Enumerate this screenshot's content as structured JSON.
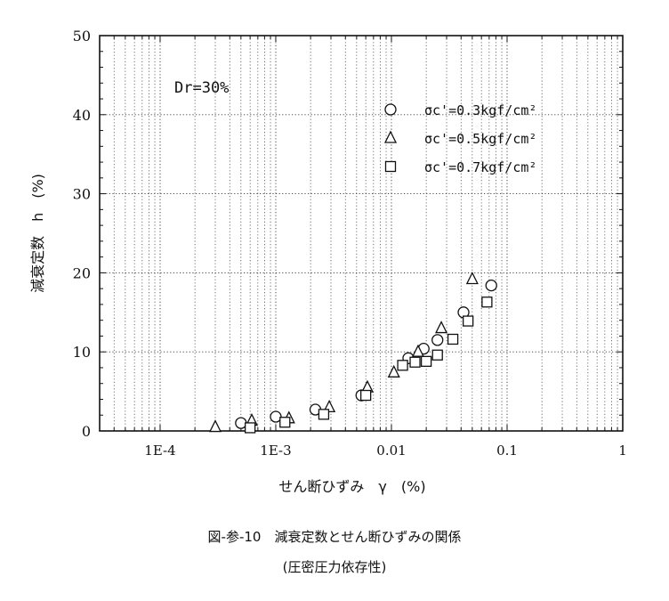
{
  "chart_data": {
    "type": "scatter",
    "xscale": "log",
    "xlim": [
      3e-05,
      1
    ],
    "ylim": [
      0,
      50
    ],
    "ylabel": "減衰定数　h　(%)",
    "xlabel": "せん断ひずみ　γ　(%)",
    "x_ticks": [
      {
        "value": 0.0001,
        "label": "1E-4"
      },
      {
        "value": 0.001,
        "label": "1E-3"
      },
      {
        "value": 0.01,
        "label": "0.01"
      },
      {
        "value": 0.1,
        "label": "0.1"
      },
      {
        "value": 1,
        "label": "1"
      }
    ],
    "y_ticks": [
      {
        "value": 0,
        "label": "0"
      },
      {
        "value": 10,
        "label": "10"
      },
      {
        "value": 20,
        "label": "20"
      },
      {
        "value": 30,
        "label": "30"
      },
      {
        "value": 40,
        "label": "40"
      },
      {
        "value": 50,
        "label": "50"
      }
    ],
    "grid": true,
    "legend_position": "top-right",
    "annotation": "Dr=30%",
    "series": [
      {
        "name": "σc'=0.3kgf/cm²",
        "marker": "circle",
        "points": [
          [
            0.0005,
            1.0
          ],
          [
            0.001,
            1.8
          ],
          [
            0.0022,
            2.7
          ],
          [
            0.0055,
            4.5
          ],
          [
            0.014,
            9.2
          ],
          [
            0.019,
            10.4
          ],
          [
            0.025,
            11.5
          ],
          [
            0.042,
            15.0
          ],
          [
            0.073,
            18.4
          ]
        ]
      },
      {
        "name": "σc'=0.5kgf/cm²",
        "marker": "triangle",
        "points": [
          [
            0.0003,
            0.5
          ],
          [
            0.00062,
            1.3
          ],
          [
            0.0013,
            1.6
          ],
          [
            0.0029,
            3.0
          ],
          [
            0.0062,
            5.5
          ],
          [
            0.0105,
            7.4
          ],
          [
            0.017,
            10.0
          ],
          [
            0.027,
            13.0
          ],
          [
            0.05,
            19.2
          ]
        ]
      },
      {
        "name": "σc'=0.7kgf/cm²",
        "marker": "square",
        "points": [
          [
            0.0006,
            0.4
          ],
          [
            0.0012,
            1.1
          ],
          [
            0.0026,
            2.1
          ],
          [
            0.006,
            4.5
          ],
          [
            0.0125,
            8.3
          ],
          [
            0.016,
            8.7
          ],
          [
            0.02,
            8.8
          ],
          [
            0.025,
            9.6
          ],
          [
            0.034,
            11.6
          ],
          [
            0.046,
            13.9
          ],
          [
            0.067,
            16.3
          ]
        ]
      }
    ]
  },
  "caption": {
    "line1": "図-参-10　減衰定数とせん断ひずみの関係",
    "line2": "(圧密圧力依存性)"
  }
}
